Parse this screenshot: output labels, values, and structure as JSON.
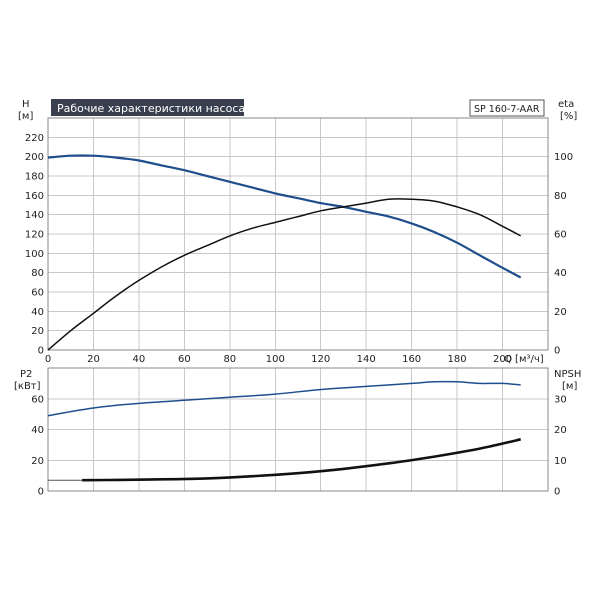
{
  "chart_data": [
    {
      "type": "line",
      "title": "Рабочие характеристики насоса",
      "badge": "SP 160-7-AAR",
      "xlabel": "Q [м³/ч]",
      "xlim": [
        0,
        220
      ],
      "x_ticks": [
        0,
        20,
        40,
        60,
        80,
        100,
        120,
        140,
        160,
        180,
        200
      ],
      "y_left": {
        "label_top": "H",
        "label_unit": "[м]",
        "lim": [
          0,
          240
        ],
        "ticks": [
          0,
          20,
          40,
          60,
          80,
          100,
          120,
          140,
          160,
          180,
          200,
          220
        ]
      },
      "y_right": {
        "label_top": "eta",
        "label_unit": "[%]",
        "lim": [
          0,
          120
        ],
        "ticks": [
          0,
          20,
          40,
          60,
          80,
          100
        ]
      },
      "grid": true,
      "series": [
        {
          "axis": "left",
          "color": "#1f4e8c",
          "x": [
            0,
            10,
            20,
            30,
            40,
            50,
            60,
            70,
            80,
            90,
            100,
            110,
            120,
            130,
            140,
            150,
            160,
            170,
            180,
            190,
            200,
            208
          ],
          "y": [
            199,
            201,
            201,
            199,
            196,
            191,
            186,
            180,
            174,
            168,
            162,
            157,
            152,
            148,
            143,
            138,
            131,
            122,
            111,
            98,
            85,
            75
          ]
        },
        {
          "axis": "right",
          "color": "#111111",
          "x": [
            0,
            10,
            20,
            30,
            40,
            50,
            60,
            70,
            80,
            90,
            100,
            110,
            120,
            130,
            140,
            150,
            160,
            170,
            180,
            190,
            200,
            208
          ],
          "y": [
            0,
            10,
            19,
            28,
            36,
            43,
            49,
            54,
            59,
            63,
            66,
            69,
            72,
            74,
            76,
            78,
            78,
            77,
            74,
            70,
            64,
            59
          ]
        }
      ]
    },
    {
      "type": "line",
      "xlim": [
        0,
        220
      ],
      "y_left": {
        "label_top": "P2",
        "label_unit": "[кВт]",
        "lim": [
          0,
          80
        ],
        "ticks": [
          0,
          20,
          40,
          60
        ]
      },
      "y_right": {
        "label_top": "NPSH",
        "label_unit": "[м]",
        "lim": [
          0,
          40
        ],
        "ticks": [
          0,
          10,
          20,
          30
        ]
      },
      "grid": true,
      "series": [
        {
          "axis": "left",
          "color": "#1f4e8c",
          "x": [
            0,
            20,
            40,
            60,
            80,
            100,
            120,
            140,
            160,
            170,
            180,
            190,
            200,
            208
          ],
          "y": [
            49,
            54,
            57,
            59,
            61,
            63,
            66,
            68,
            70,
            71,
            71,
            70,
            70,
            69
          ]
        },
        {
          "axis": "right",
          "color": "#111111",
          "x": [
            15,
            30,
            50,
            70,
            90,
            110,
            130,
            150,
            170,
            190,
            208
          ],
          "y": [
            3.5,
            3.6,
            3.8,
            4.1,
            4.8,
            5.8,
            7.2,
            9.0,
            11.2,
            13.8,
            16.8
          ]
        },
        {
          "axis": "left",
          "color": "#555555",
          "x": [
            0,
            15
          ],
          "y": [
            7,
            7
          ]
        }
      ]
    }
  ]
}
